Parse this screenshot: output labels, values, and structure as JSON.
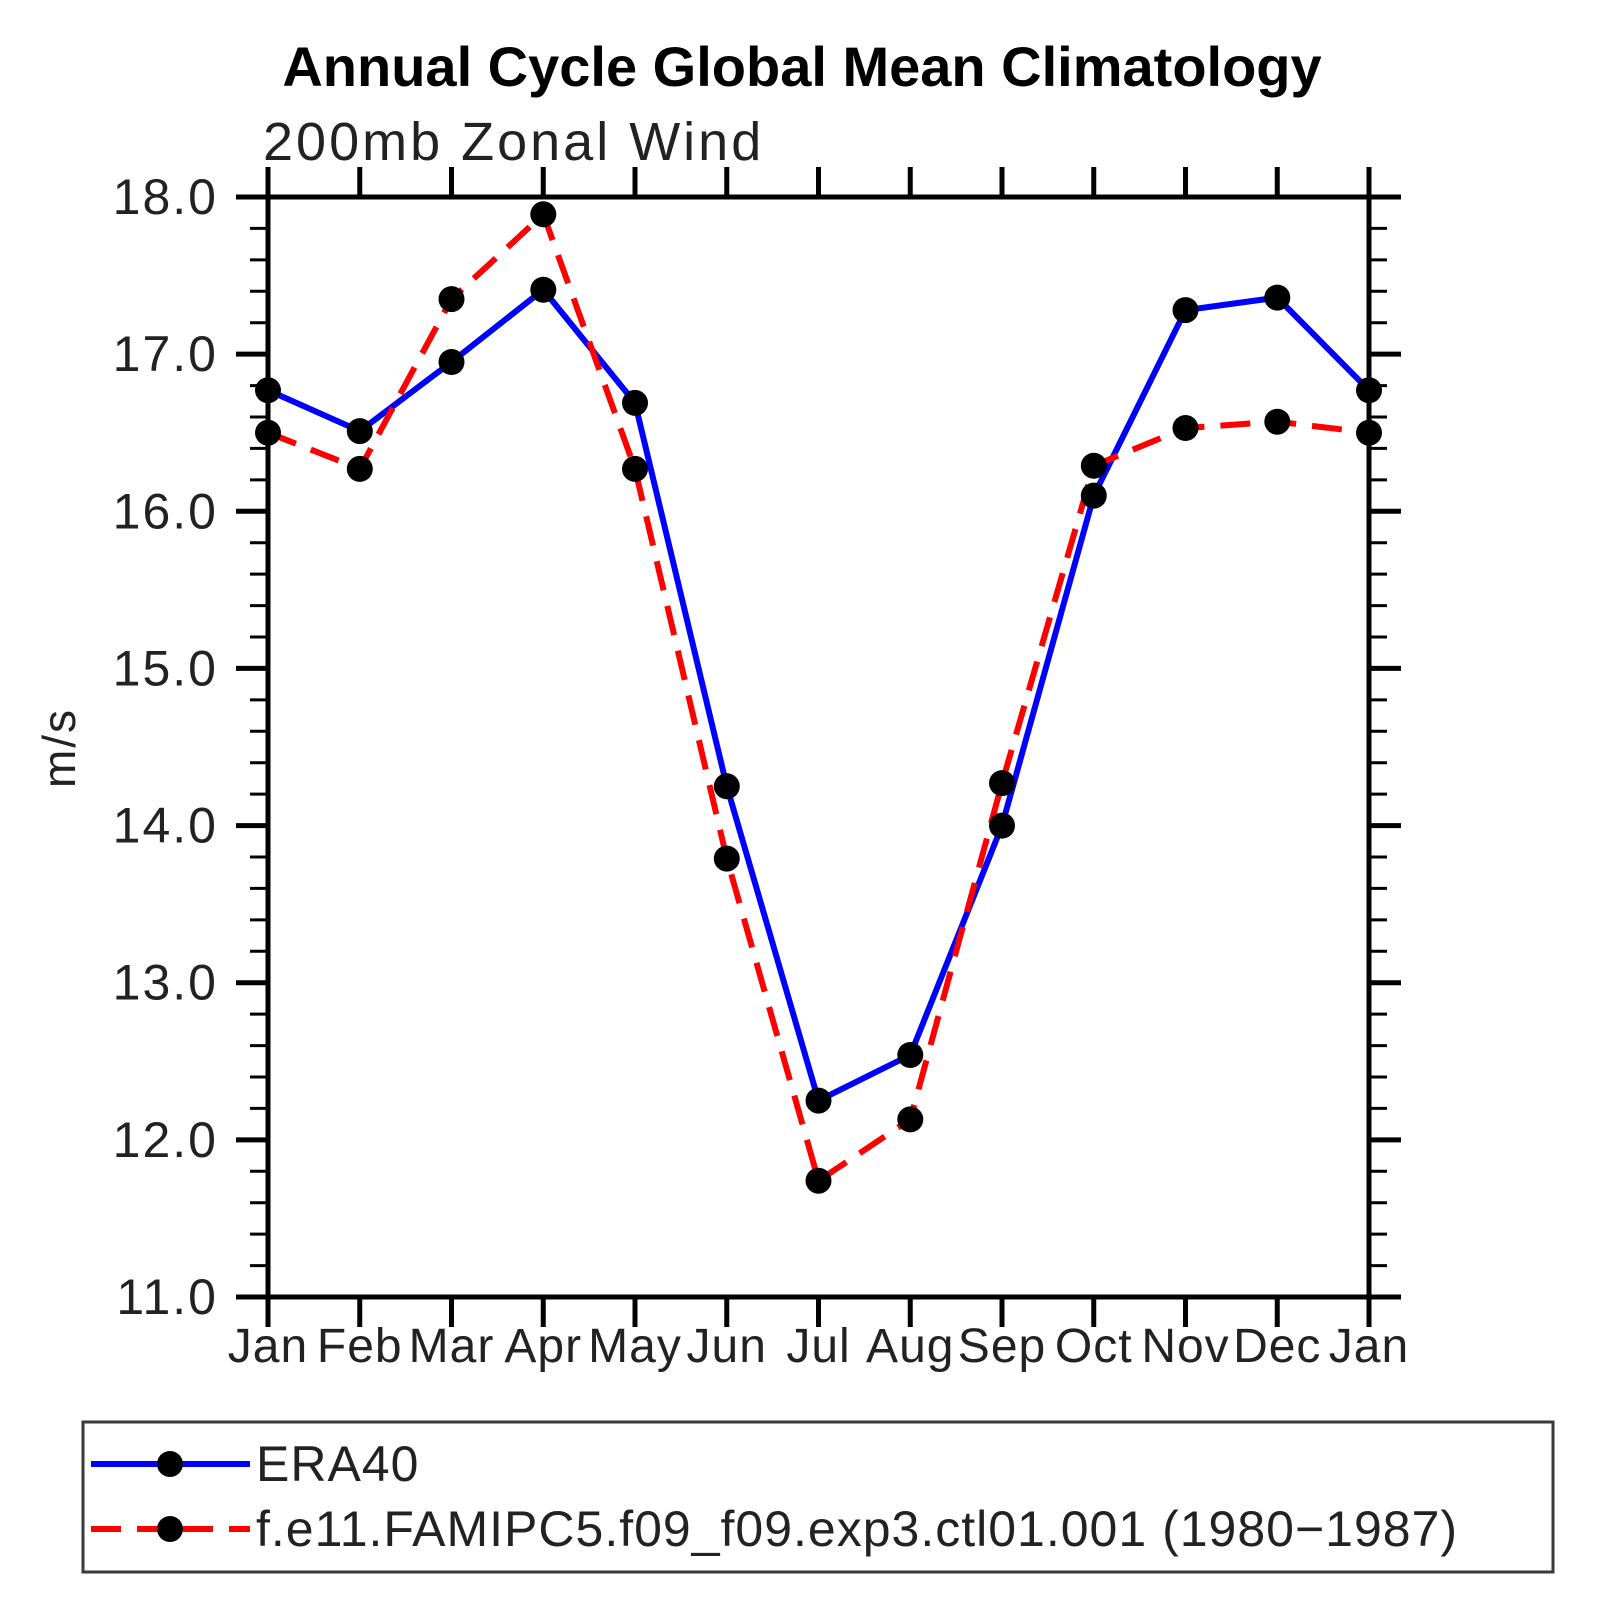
{
  "chart_data": {
    "type": "line",
    "title": "Annual Cycle Global Mean Climatology",
    "subtitle": "200mb Zonal Wind",
    "ylabel": "m/s",
    "xlabel": "",
    "ylim": [
      11.0,
      18.0
    ],
    "ytick_interval": 1.0,
    "yminor_interval": 0.2,
    "grid": false,
    "legend_position": "bottom",
    "marker_color": "#000000",
    "axis_color": "#000000",
    "categories": [
      "Jan",
      "Feb",
      "Mar",
      "Apr",
      "May",
      "Jun",
      "Jul",
      "Aug",
      "Sep",
      "Oct",
      "Nov",
      "Dec",
      "Jan"
    ],
    "series": [
      {
        "name": "ERA40",
        "color": "#0000ff",
        "style": "solid",
        "values": [
          16.77,
          16.51,
          16.95,
          17.41,
          16.69,
          14.25,
          12.25,
          12.54,
          14.0,
          16.1,
          17.28,
          17.36,
          16.77
        ]
      },
      {
        "name": "f.e11.FAMIPC5.f09_f09.exp3.ctl01.001 (1980−1987)",
        "color": "#ff0000",
        "style": "dashed",
        "values": [
          16.5,
          16.27,
          17.35,
          17.89,
          16.27,
          13.79,
          11.74,
          12.13,
          14.27,
          16.29,
          16.53,
          16.57,
          16.5
        ]
      }
    ]
  }
}
